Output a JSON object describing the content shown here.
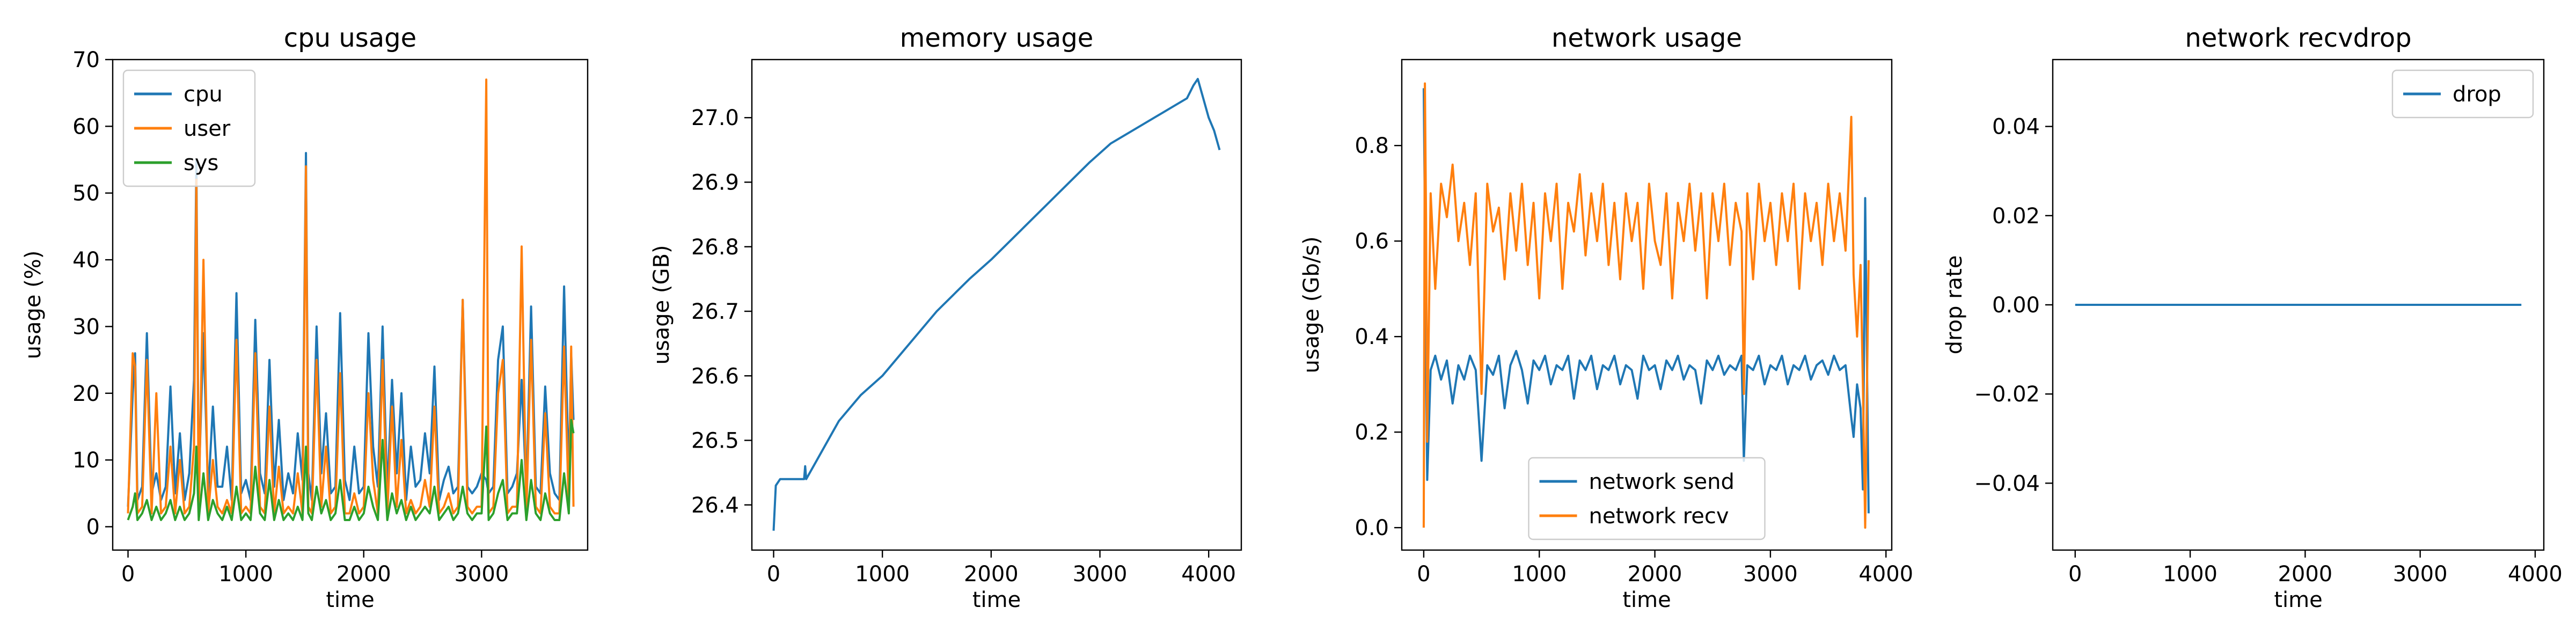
{
  "chart_data": [
    {
      "type": "line",
      "title": "cpu usage",
      "xlabel": "time",
      "ylabel": "usage (%)",
      "xlim": [
        -130,
        3900
      ],
      "ylim": [
        -3.5,
        70
      ],
      "xticks": [
        0,
        1000,
        2000,
        3000
      ],
      "yticks": [
        0,
        10,
        20,
        30,
        40,
        50,
        60,
        70
      ],
      "legend": "top-left",
      "series": [
        {
          "name": "cpu",
          "color": "#1f77b4",
          "x": [
            0,
            40,
            60,
            80,
            120,
            160,
            200,
            240,
            280,
            320,
            360,
            400,
            440,
            480,
            520,
            560,
            580,
            600,
            640,
            680,
            720,
            760,
            800,
            840,
            880,
            920,
            960,
            1000,
            1040,
            1080,
            1120,
            1160,
            1200,
            1240,
            1280,
            1320,
            1360,
            1400,
            1440,
            1480,
            1510,
            1530,
            1560,
            1600,
            1640,
            1680,
            1720,
            1760,
            1800,
            1840,
            1880,
            1920,
            1960,
            2000,
            2040,
            2080,
            2120,
            2160,
            2200,
            2240,
            2280,
            2320,
            2360,
            2400,
            2440,
            2480,
            2520,
            2560,
            2600,
            2640,
            2680,
            2720,
            2760,
            2800,
            2840,
            2880,
            2920,
            2960,
            3000,
            3040,
            3060,
            3100,
            3140,
            3180,
            3220,
            3260,
            3300,
            3340,
            3380,
            3420,
            3460,
            3500,
            3540,
            3580,
            3620,
            3660,
            3700,
            3740,
            3760,
            3780
          ],
          "y": [
            3,
            20,
            26,
            4,
            6,
            29,
            5,
            8,
            4,
            6,
            21,
            5,
            14,
            4,
            8,
            22,
            55,
            6,
            29,
            5,
            18,
            6,
            6,
            12,
            4,
            35,
            5,
            7,
            4,
            31,
            8,
            5,
            25,
            6,
            16,
            4,
            8,
            5,
            14,
            7,
            56,
            8,
            4,
            30,
            8,
            17,
            5,
            6,
            32,
            7,
            4,
            12,
            5,
            6,
            29,
            12,
            6,
            30,
            5,
            22,
            8,
            20,
            4,
            12,
            6,
            7,
            14,
            8,
            24,
            4,
            7,
            9,
            5,
            6,
            34,
            6,
            5,
            6,
            8,
            7,
            5,
            6,
            25,
            30,
            5,
            6,
            8,
            22,
            5,
            33,
            6,
            5,
            21,
            8,
            5,
            4,
            36,
            7,
            26,
            16
          ]
        },
        {
          "name": "user",
          "color": "#ff7f0e",
          "x": [
            0,
            40,
            60,
            80,
            120,
            160,
            200,
            240,
            280,
            320,
            360,
            400,
            440,
            480,
            520,
            560,
            580,
            600,
            640,
            680,
            720,
            760,
            800,
            840,
            880,
            920,
            960,
            1000,
            1040,
            1080,
            1120,
            1160,
            1200,
            1240,
            1280,
            1320,
            1360,
            1400,
            1440,
            1480,
            1510,
            1530,
            1560,
            1600,
            1640,
            1680,
            1720,
            1760,
            1800,
            1840,
            1880,
            1920,
            1960,
            2000,
            2040,
            2080,
            2120,
            2160,
            2200,
            2240,
            2280,
            2320,
            2360,
            2400,
            2440,
            2480,
            2520,
            2560,
            2600,
            2640,
            2680,
            2720,
            2760,
            2800,
            2840,
            2880,
            2920,
            2960,
            3000,
            3040,
            3060,
            3100,
            3140,
            3180,
            3220,
            3260,
            3300,
            3340,
            3380,
            3420,
            3460,
            3500,
            3540,
            3580,
            3620,
            3660,
            3700,
            3740,
            3760,
            3780
          ],
          "y": [
            2,
            26,
            24,
            2,
            3,
            25,
            2,
            20,
            2,
            3,
            12,
            2,
            10,
            2,
            3,
            12,
            52,
            2,
            40,
            2,
            10,
            3,
            2,
            4,
            2,
            28,
            2,
            3,
            2,
            26,
            3,
            2,
            18,
            2,
            9,
            2,
            3,
            2,
            8,
            2,
            54,
            3,
            2,
            25,
            3,
            12,
            2,
            3,
            23,
            2,
            2,
            5,
            2,
            3,
            20,
            7,
            2,
            25,
            2,
            18,
            3,
            13,
            2,
            4,
            2,
            3,
            7,
            3,
            18,
            2,
            3,
            5,
            2,
            3,
            34,
            3,
            2,
            3,
            3,
            67,
            2,
            3,
            20,
            25,
            2,
            3,
            3,
            42,
            2,
            28,
            3,
            2,
            17,
            3,
            2,
            2,
            27,
            3,
            27,
            3
          ]
        },
        {
          "name": "sys",
          "color": "#2ca02c",
          "x": [
            0,
            40,
            60,
            80,
            120,
            160,
            200,
            240,
            280,
            320,
            360,
            400,
            440,
            480,
            520,
            560,
            580,
            600,
            640,
            680,
            720,
            760,
            800,
            840,
            880,
            920,
            960,
            1000,
            1040,
            1080,
            1120,
            1160,
            1200,
            1240,
            1280,
            1320,
            1360,
            1400,
            1440,
            1480,
            1510,
            1530,
            1560,
            1600,
            1640,
            1680,
            1720,
            1760,
            1800,
            1840,
            1880,
            1920,
            1960,
            2000,
            2040,
            2080,
            2120,
            2160,
            2200,
            2240,
            2280,
            2320,
            2360,
            2400,
            2440,
            2480,
            2520,
            2560,
            2600,
            2640,
            2680,
            2720,
            2760,
            2800,
            2840,
            2880,
            2920,
            2960,
            3000,
            3040,
            3060,
            3100,
            3140,
            3180,
            3220,
            3260,
            3300,
            3340,
            3380,
            3420,
            3460,
            3500,
            3540,
            3580,
            3620,
            3660,
            3700,
            3740,
            3760,
            3780
          ],
          "y": [
            1,
            3,
            5,
            1,
            2,
            4,
            1,
            3,
            1,
            2,
            4,
            1,
            3,
            1,
            2,
            5,
            12,
            1,
            8,
            1,
            4,
            2,
            1,
            3,
            1,
            6,
            1,
            2,
            1,
            9,
            2,
            1,
            7,
            1,
            4,
            1,
            2,
            1,
            3,
            1,
            12,
            2,
            1,
            6,
            2,
            4,
            1,
            2,
            7,
            1,
            1,
            3,
            1,
            2,
            6,
            3,
            1,
            13,
            1,
            5,
            2,
            4,
            1,
            3,
            1,
            2,
            3,
            2,
            6,
            1,
            2,
            3,
            1,
            2,
            6,
            2,
            1,
            2,
            2,
            15,
            1,
            2,
            5,
            7,
            1,
            2,
            2,
            10,
            1,
            7,
            2,
            1,
            5,
            2,
            1,
            1,
            8,
            2,
            16,
            14
          ]
        }
      ]
    },
    {
      "type": "line",
      "title": "memory usage",
      "xlabel": "time",
      "ylabel": "usage (GB)",
      "xlim": [
        -200,
        4300
      ],
      "ylim": [
        26.33,
        27.09
      ],
      "xticks": [
        0,
        1000,
        2000,
        3000,
        4000
      ],
      "yticks": [
        26.4,
        26.5,
        26.6,
        26.7,
        26.8,
        26.9,
        27.0
      ],
      "series": [
        {
          "name": "",
          "color": "#1f77b4",
          "x": [
            0,
            20,
            60,
            120,
            200,
            280,
            290,
            300,
            400,
            600,
            800,
            1000,
            1050,
            1200,
            1500,
            1800,
            2000,
            2300,
            2600,
            2900,
            3100,
            3300,
            3500,
            3700,
            3800,
            3860,
            3900,
            3950,
            4000,
            4050,
            4100
          ],
          "y": [
            26.36,
            26.43,
            26.44,
            26.44,
            26.44,
            26.44,
            26.46,
            26.44,
            26.47,
            26.53,
            26.57,
            26.6,
            26.61,
            26.64,
            26.7,
            26.75,
            26.78,
            26.83,
            26.88,
            26.93,
            26.96,
            26.98,
            27.0,
            27.02,
            27.03,
            27.05,
            27.06,
            27.03,
            27.0,
            26.98,
            26.95
          ]
        }
      ]
    },
    {
      "type": "line",
      "title": "network usage",
      "xlabel": "time",
      "ylabel": "usage (Gb/s)",
      "xlim": [
        -190,
        4050
      ],
      "ylim": [
        -0.047,
        0.98
      ],
      "xticks": [
        0,
        1000,
        2000,
        3000,
        4000
      ],
      "yticks": [
        0.0,
        0.2,
        0.4,
        0.6,
        0.8
      ],
      "legend": "bottom-center",
      "series": [
        {
          "name": "network send",
          "color": "#1f77b4",
          "x": [
            0,
            10,
            20,
            30,
            60,
            100,
            150,
            200,
            250,
            300,
            350,
            400,
            450,
            500,
            550,
            600,
            650,
            700,
            750,
            800,
            850,
            900,
            950,
            1000,
            1050,
            1100,
            1150,
            1200,
            1250,
            1300,
            1350,
            1400,
            1450,
            1500,
            1550,
            1600,
            1650,
            1700,
            1750,
            1800,
            1850,
            1900,
            1950,
            2000,
            2050,
            2100,
            2150,
            2200,
            2250,
            2300,
            2350,
            2400,
            2450,
            2500,
            2550,
            2600,
            2650,
            2700,
            2750,
            2770,
            2800,
            2850,
            2900,
            2950,
            3000,
            3050,
            3100,
            3150,
            3200,
            3250,
            3300,
            3350,
            3400,
            3450,
            3500,
            3550,
            3600,
            3650,
            3700,
            3720,
            3750,
            3780,
            3800,
            3820,
            3850
          ],
          "y": [
            0.92,
            0.65,
            0.35,
            0.1,
            0.33,
            0.36,
            0.31,
            0.35,
            0.26,
            0.34,
            0.31,
            0.36,
            0.33,
            0.14,
            0.34,
            0.32,
            0.36,
            0.25,
            0.34,
            0.37,
            0.33,
            0.26,
            0.35,
            0.33,
            0.36,
            0.3,
            0.34,
            0.33,
            0.36,
            0.27,
            0.35,
            0.33,
            0.36,
            0.29,
            0.34,
            0.33,
            0.36,
            0.3,
            0.34,
            0.33,
            0.27,
            0.36,
            0.33,
            0.34,
            0.29,
            0.35,
            0.33,
            0.36,
            0.31,
            0.34,
            0.33,
            0.26,
            0.35,
            0.33,
            0.36,
            0.32,
            0.34,
            0.33,
            0.36,
            0.14,
            0.34,
            0.33,
            0.36,
            0.3,
            0.34,
            0.33,
            0.36,
            0.3,
            0.34,
            0.33,
            0.36,
            0.31,
            0.34,
            0.35,
            0.32,
            0.36,
            0.33,
            0.34,
            0.23,
            0.19,
            0.3,
            0.25,
            0.08,
            0.69,
            0.03
          ]
        },
        {
          "name": "network recv",
          "color": "#ff7f0e",
          "x": [
            0,
            10,
            20,
            30,
            60,
            100,
            150,
            200,
            250,
            300,
            350,
            400,
            450,
            500,
            550,
            600,
            650,
            700,
            750,
            800,
            850,
            900,
            950,
            1000,
            1050,
            1100,
            1150,
            1200,
            1250,
            1300,
            1350,
            1400,
            1450,
            1500,
            1550,
            1600,
            1650,
            1700,
            1750,
            1800,
            1850,
            1900,
            1950,
            2000,
            2050,
            2100,
            2150,
            2200,
            2250,
            2300,
            2350,
            2400,
            2450,
            2500,
            2550,
            2600,
            2650,
            2700,
            2750,
            2770,
            2800,
            2850,
            2900,
            2950,
            3000,
            3050,
            3100,
            3150,
            3200,
            3250,
            3300,
            3350,
            3400,
            3450,
            3500,
            3550,
            3600,
            3650,
            3700,
            3720,
            3750,
            3780,
            3800,
            3820,
            3850
          ],
          "y": [
            0.0,
            0.93,
            0.65,
            0.18,
            0.7,
            0.5,
            0.72,
            0.65,
            0.76,
            0.6,
            0.68,
            0.55,
            0.7,
            0.28,
            0.72,
            0.62,
            0.67,
            0.52,
            0.7,
            0.58,
            0.72,
            0.55,
            0.68,
            0.48,
            0.7,
            0.6,
            0.72,
            0.5,
            0.68,
            0.62,
            0.74,
            0.57,
            0.7,
            0.6,
            0.72,
            0.55,
            0.68,
            0.52,
            0.7,
            0.6,
            0.68,
            0.5,
            0.72,
            0.6,
            0.55,
            0.7,
            0.48,
            0.68,
            0.6,
            0.72,
            0.58,
            0.7,
            0.48,
            0.7,
            0.6,
            0.72,
            0.55,
            0.68,
            0.62,
            0.28,
            0.7,
            0.52,
            0.72,
            0.6,
            0.68,
            0.55,
            0.7,
            0.6,
            0.72,
            0.5,
            0.7,
            0.6,
            0.68,
            0.55,
            0.72,
            0.6,
            0.7,
            0.58,
            0.86,
            0.53,
            0.4,
            0.55,
            0.3,
            0.0,
            0.56
          ]
        }
      ]
    },
    {
      "type": "line",
      "title": "network recvdrop",
      "xlabel": "time",
      "ylabel": "drop rate",
      "xlim": [
        -195,
        4075
      ],
      "ylim": [
        -0.055,
        0.055
      ],
      "xticks": [
        0,
        1000,
        2000,
        3000,
        4000
      ],
      "yticks": [
        -0.04,
        -0.02,
        0.0,
        0.02,
        0.04
      ],
      "legend": "top-right",
      "series": [
        {
          "name": "drop",
          "color": "#1f77b4",
          "x": [
            0,
            3880
          ],
          "y": [
            0,
            0
          ]
        }
      ]
    }
  ]
}
